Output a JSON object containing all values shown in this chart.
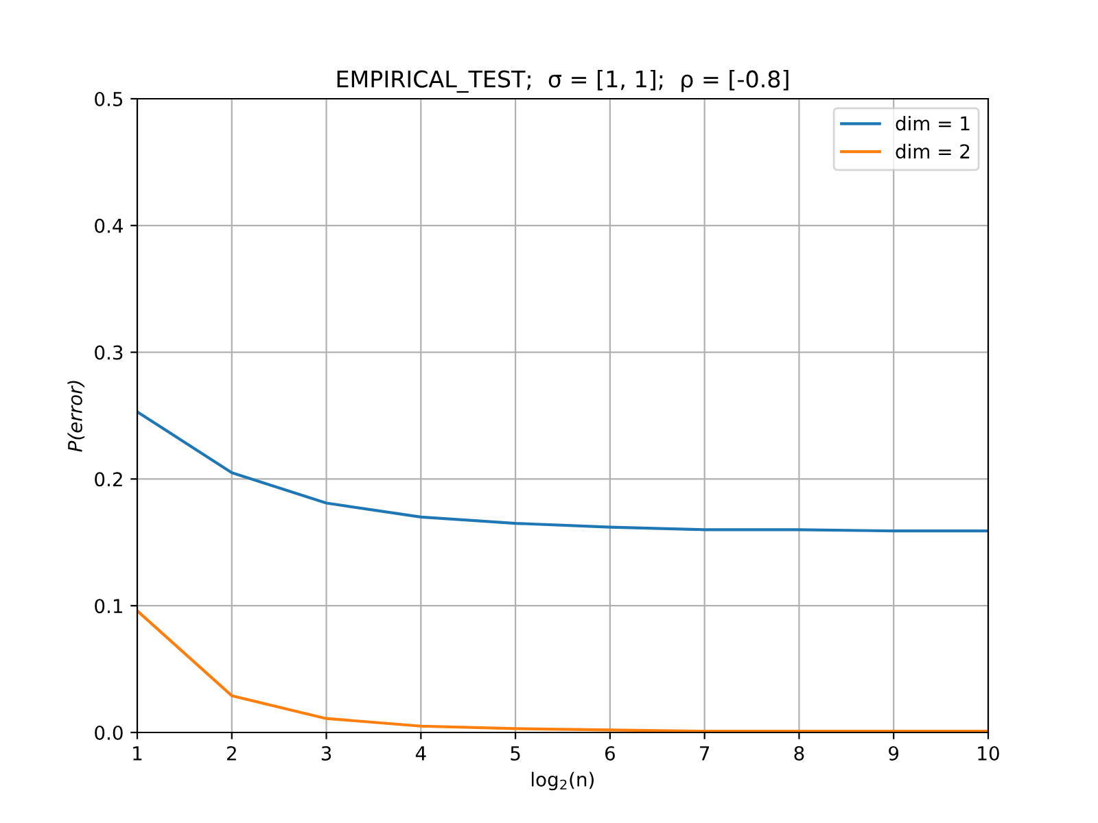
{
  "chart_data": {
    "type": "line",
    "title": "EMPIRICAL_TEST;  σ = [1, 1];  ρ = [-0.8]",
    "xlabel": "log$_{2}$(n)",
    "ylabel": "P(error)",
    "x": [
      1,
      2,
      3,
      4,
      5,
      6,
      7,
      8,
      9,
      10
    ],
    "series": [
      {
        "name": "dim = 1",
        "color": "#1f77b4",
        "values": [
          0.253,
          0.205,
          0.181,
          0.17,
          0.165,
          0.162,
          0.16,
          0.16,
          0.159,
          0.159
        ]
      },
      {
        "name": "dim = 2",
        "color": "#ff7f0e",
        "values": [
          0.096,
          0.029,
          0.011,
          0.005,
          0.003,
          0.002,
          0.001,
          0.001,
          0.001,
          0.001
        ]
      }
    ],
    "xlim": [
      1,
      10
    ],
    "ylim": [
      0,
      0.5
    ],
    "xticks": [
      1,
      2,
      3,
      4,
      5,
      6,
      7,
      8,
      9,
      10
    ],
    "yticks": [
      {
        "value": 0,
        "label": "0.0"
      },
      0.1,
      0.2,
      0.3,
      0.4,
      0.5
    ],
    "grid": true,
    "legend": "top right",
    "marker": "none",
    "line_style": "solid"
  }
}
